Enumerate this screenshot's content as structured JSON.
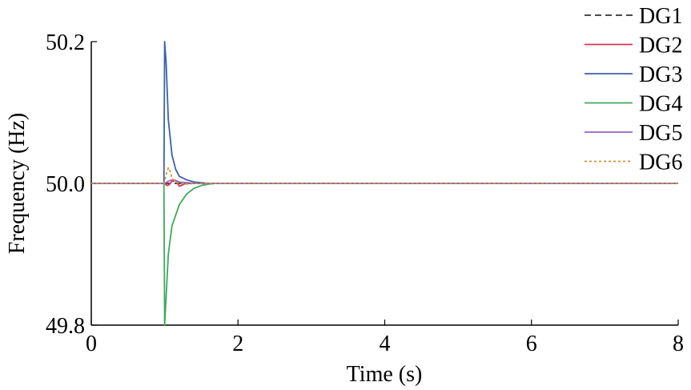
{
  "chart_data": {
    "type": "line",
    "xlabel": "Time (s)",
    "ylabel": "Frequency (Hz)",
    "xlim": [
      0,
      8
    ],
    "ylim": [
      49.8,
      50.2
    ],
    "xticks": [
      0,
      2,
      4,
      6,
      8
    ],
    "yticks": [
      49.8,
      50.0,
      50.2
    ],
    "xtick_labels": [
      "0",
      "2",
      "4",
      "6",
      "8"
    ],
    "ytick_labels": [
      "49.8",
      "50.0",
      "50.2"
    ],
    "grid": false,
    "legend_position": "top-right",
    "series": [
      {
        "name": "DG1",
        "color": "#333333",
        "dash": "dashed",
        "x": [
          0,
          8
        ],
        "y": [
          50.0,
          50.0
        ]
      },
      {
        "name": "DG2",
        "color": "#d2384e",
        "dash": "solid",
        "x": [
          0,
          1.0,
          1.03,
          1.06,
          1.1,
          1.15,
          1.2,
          1.25,
          1.3,
          1.4,
          1.5,
          8
        ],
        "y": [
          50.0,
          50.0,
          49.997,
          49.998,
          50.003,
          50.004,
          49.996,
          49.998,
          50.001,
          50.0,
          50.0,
          50.0
        ]
      },
      {
        "name": "DG3",
        "color": "#3a62ad",
        "dash": "solid",
        "x": [
          0,
          0.99,
          1.0,
          1.02,
          1.05,
          1.1,
          1.15,
          1.2,
          1.3,
          1.4,
          1.5,
          1.6,
          8
        ],
        "y": [
          50.0,
          50.0,
          50.2,
          50.17,
          50.09,
          50.04,
          50.02,
          50.01,
          50.005,
          50.002,
          50.001,
          50.0,
          50.0
        ]
      },
      {
        "name": "DG4",
        "color": "#3faa5c",
        "dash": "solid",
        "x": [
          0,
          0.99,
          1.0,
          1.02,
          1.05,
          1.1,
          1.2,
          1.3,
          1.4,
          1.5,
          1.6,
          1.7,
          8
        ],
        "y": [
          50.0,
          50.0,
          49.8,
          49.84,
          49.9,
          49.94,
          49.97,
          49.985,
          49.993,
          49.997,
          49.999,
          50.0,
          50.0
        ]
      },
      {
        "name": "DG5",
        "color": "#9a63c4",
        "dash": "solid",
        "x": [
          0,
          1.0,
          1.05,
          1.1,
          1.15,
          1.2,
          1.3,
          1.4,
          1.5,
          8
        ],
        "y": [
          50.0,
          50.0,
          50.003,
          50.005,
          50.004,
          50.002,
          50.001,
          50.0,
          50.0,
          50.0
        ]
      },
      {
        "name": "DG6",
        "color": "#c9982c",
        "dash": "dotted",
        "x": [
          0,
          0.99,
          1.02,
          1.05,
          1.08,
          1.1,
          1.15,
          1.2,
          1.3,
          1.4,
          1.5,
          8
        ],
        "y": [
          50.0,
          50.0,
          50.012,
          50.022,
          50.016,
          50.008,
          50.002,
          50.0,
          49.999,
          50.0,
          50.0,
          50.0
        ]
      }
    ]
  }
}
